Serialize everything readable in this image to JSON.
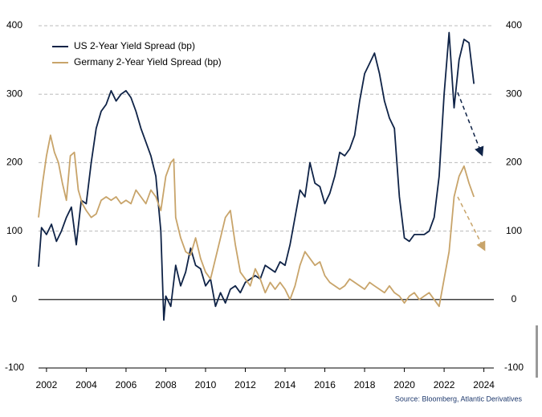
{
  "chart_data": {
    "type": "line",
    "series": [
      {
        "name": "US 2-Year Yield Spread (bp)",
        "color": "#0f2347",
        "x": [
          2001.6,
          2001.75,
          2002.0,
          2002.25,
          2002.5,
          2002.75,
          2003.0,
          2003.25,
          2003.5,
          2003.75,
          2004.0,
          2004.25,
          2004.5,
          2004.75,
          2005.0,
          2005.25,
          2005.5,
          2005.75,
          2006.0,
          2006.25,
          2006.5,
          2006.75,
          2007.0,
          2007.25,
          2007.5,
          2007.75,
          2007.9,
          2008.0,
          2008.25,
          2008.5,
          2008.75,
          2009.0,
          2009.25,
          2009.5,
          2009.75,
          2010.0,
          2010.25,
          2010.5,
          2010.75,
          2011.0,
          2011.25,
          2011.5,
          2011.75,
          2012.0,
          2012.25,
          2012.5,
          2012.75,
          2013.0,
          2013.25,
          2013.5,
          2013.75,
          2014.0,
          2014.25,
          2014.5,
          2014.75,
          2015.0,
          2015.25,
          2015.5,
          2015.75,
          2016.0,
          2016.25,
          2016.5,
          2016.75,
          2017.0,
          2017.25,
          2017.5,
          2017.75,
          2018.0,
          2018.25,
          2018.5,
          2018.75,
          2019.0,
          2019.25,
          2019.5,
          2019.75,
          2020.0,
          2020.25,
          2020.5,
          2020.75,
          2021.0,
          2021.25,
          2021.5,
          2021.75,
          2022.0,
          2022.25,
          2022.5,
          2022.75,
          2023.0,
          2023.25,
          2023.5
        ],
        "values": [
          48,
          105,
          95,
          110,
          85,
          100,
          120,
          135,
          80,
          145,
          140,
          200,
          250,
          275,
          285,
          305,
          290,
          300,
          305,
          295,
          275,
          250,
          230,
          210,
          180,
          100,
          -30,
          5,
          -10,
          50,
          20,
          40,
          75,
          50,
          45,
          20,
          30,
          -10,
          10,
          -5,
          15,
          20,
          10,
          25,
          30,
          35,
          30,
          50,
          45,
          40,
          55,
          50,
          80,
          120,
          160,
          150,
          200,
          170,
          165,
          140,
          155,
          180,
          215,
          210,
          220,
          240,
          290,
          330,
          345,
          360,
          330,
          290,
          265,
          250,
          150,
          90,
          85,
          95,
          95,
          95,
          100,
          120,
          180,
          300,
          390,
          280,
          350,
          380,
          375,
          315
        ]
      },
      {
        "name": "Germany 2-Year Yield Spread (bp)",
        "color": "#c8a46a",
        "x": [
          2001.6,
          2001.8,
          2002.0,
          2002.2,
          2002.4,
          2002.6,
          2002.8,
          2003.0,
          2003.2,
          2003.4,
          2003.6,
          2003.8,
          2004.0,
          2004.25,
          2004.5,
          2004.75,
          2005.0,
          2005.25,
          2005.5,
          2005.75,
          2006.0,
          2006.25,
          2006.5,
          2006.75,
          2007.0,
          2007.25,
          2007.5,
          2007.75,
          2008.0,
          2008.25,
          2008.4,
          2008.5,
          2008.75,
          2009.0,
          2009.25,
          2009.5,
          2009.75,
          2010.0,
          2010.25,
          2010.5,
          2010.75,
          2011.0,
          2011.25,
          2011.5,
          2011.75,
          2012.0,
          2012.25,
          2012.5,
          2012.75,
          2013.0,
          2013.25,
          2013.5,
          2013.75,
          2014.0,
          2014.25,
          2014.5,
          2014.75,
          2015.0,
          2015.25,
          2015.5,
          2015.75,
          2016.0,
          2016.25,
          2016.5,
          2016.75,
          2017.0,
          2017.25,
          2017.5,
          2017.75,
          2018.0,
          2018.25,
          2018.5,
          2018.75,
          2019.0,
          2019.25,
          2019.5,
          2019.75,
          2020.0,
          2020.25,
          2020.5,
          2020.75,
          2021.0,
          2021.25,
          2021.5,
          2021.75,
          2022.0,
          2022.25,
          2022.5,
          2022.75,
          2023.0,
          2023.25,
          2023.5
        ],
        "values": [
          120,
          170,
          210,
          240,
          215,
          200,
          170,
          145,
          210,
          215,
          160,
          140,
          130,
          120,
          125,
          145,
          150,
          145,
          150,
          140,
          145,
          140,
          160,
          150,
          140,
          160,
          150,
          130,
          180,
          200,
          205,
          120,
          90,
          70,
          65,
          90,
          60,
          40,
          30,
          60,
          90,
          120,
          130,
          80,
          40,
          30,
          20,
          45,
          30,
          10,
          25,
          15,
          25,
          15,
          0,
          20,
          50,
          70,
          60,
          50,
          55,
          35,
          25,
          20,
          15,
          20,
          30,
          25,
          20,
          15,
          25,
          20,
          15,
          10,
          20,
          10,
          5,
          -5,
          5,
          10,
          0,
          5,
          10,
          0,
          -10,
          30,
          70,
          150,
          180,
          195,
          170,
          150
        ]
      }
    ],
    "xlim": [
      2001.6,
      2024.5
    ],
    "xticks": [
      2002,
      2004,
      2006,
      2008,
      2010,
      2012,
      2014,
      2016,
      2018,
      2020,
      2022,
      2024
    ],
    "ylim": [
      -100,
      400
    ],
    "yticks": [
      -100,
      0,
      100,
      200,
      300,
      400
    ],
    "y2lim": [
      -100,
      400
    ],
    "y2ticks": [
      -100,
      0,
      100,
      200,
      300,
      400
    ],
    "grid": true,
    "source": "Source: Bloomberg, Atlantic Derivatives"
  }
}
